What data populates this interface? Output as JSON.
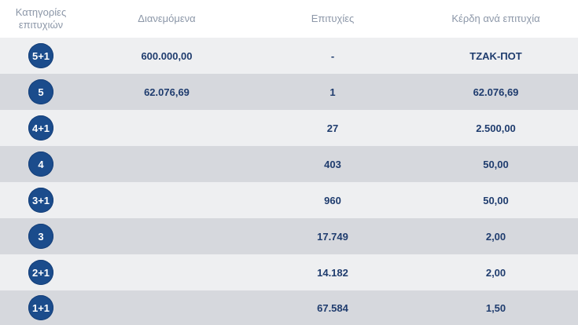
{
  "header": {
    "category": "Κατηγορίες επιτυχιών",
    "distributed": "Διανεμόμενα",
    "winners": "Επιτυχίες",
    "prize_per_winner": "Κέρδη ανά επιτυχία"
  },
  "colors": {
    "badge_background": "#1b4c8c",
    "value_text": "#1f3c6e",
    "header_text": "#8c97a8",
    "row_light": "#eeeff1",
    "row_dark": "#d6d8dd"
  },
  "rows": [
    {
      "category": "5+1",
      "distributed": "600.000,00",
      "winners": "-",
      "prize": "ΤΖΑΚ-ΠΟΤ"
    },
    {
      "category": "5",
      "distributed": "62.076,69",
      "winners": "1",
      "prize": "62.076,69"
    },
    {
      "category": "4+1",
      "distributed": "",
      "winners": "27",
      "prize": "2.500,00"
    },
    {
      "category": "4",
      "distributed": "",
      "winners": "403",
      "prize": "50,00"
    },
    {
      "category": "3+1",
      "distributed": "",
      "winners": "960",
      "prize": "50,00"
    },
    {
      "category": "3",
      "distributed": "",
      "winners": "17.749",
      "prize": "2,00"
    },
    {
      "category": "2+1",
      "distributed": "",
      "winners": "14.182",
      "prize": "2,00"
    },
    {
      "category": "1+1",
      "distributed": "",
      "winners": "67.584",
      "prize": "1,50"
    }
  ]
}
